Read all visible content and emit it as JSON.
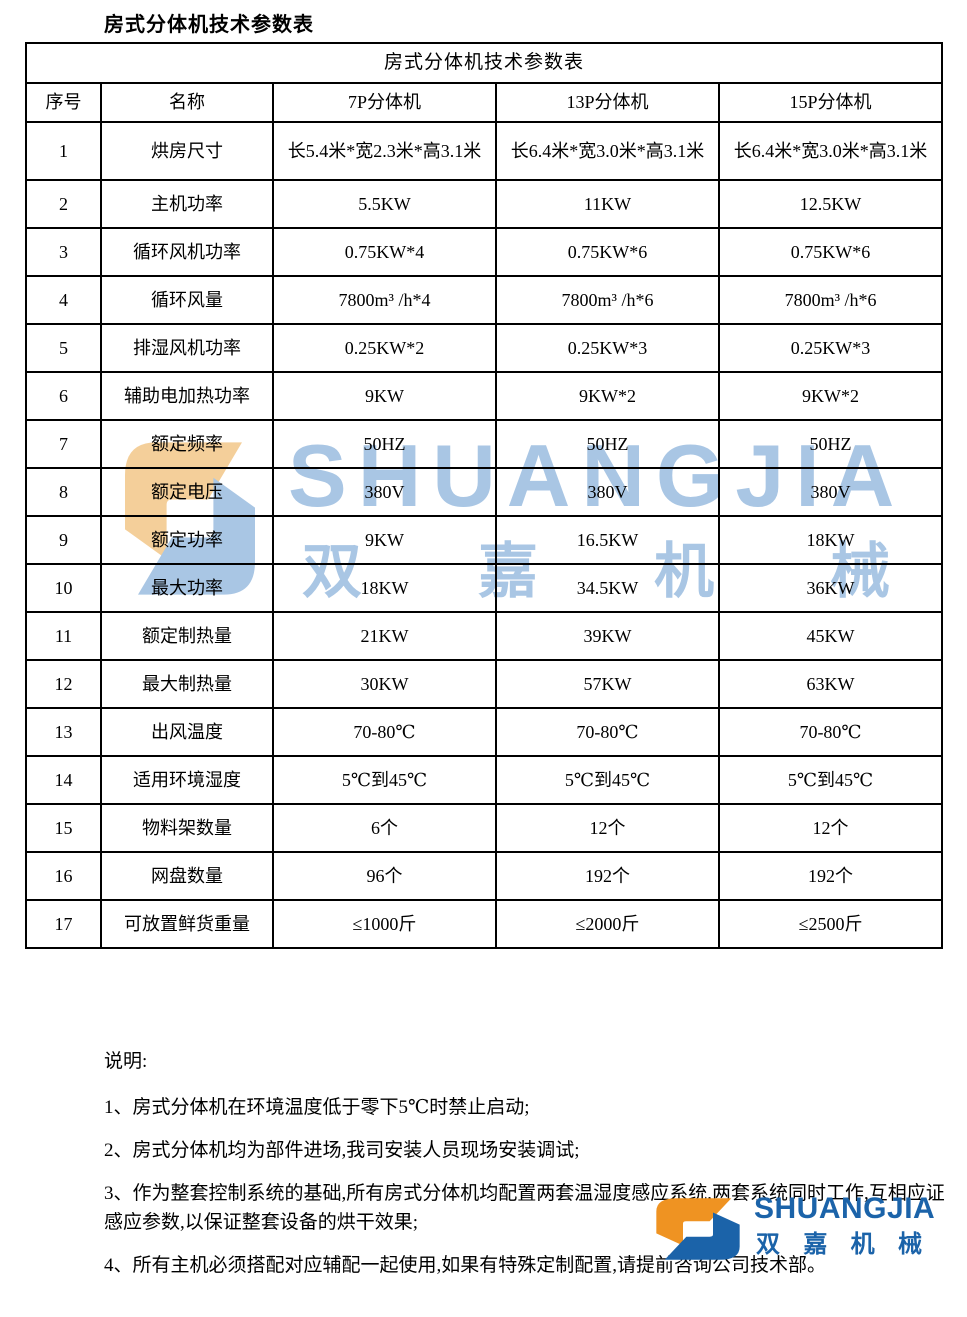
{
  "page_title": "房式分体机技术参数表",
  "table": {
    "caption": "房式分体机技术参数表",
    "columns": [
      "序号",
      "名称",
      "7P分体机",
      "13P分体机",
      "15P分体机"
    ],
    "rows": [
      [
        "1",
        "烘房尺寸",
        "长5.4米*宽2.3米*高3.1米",
        "长6.4米*宽3.0米*高3.1米",
        "长6.4米*宽3.0米*高3.1米"
      ],
      [
        "2",
        "主机功率",
        "5.5KW",
        "11KW",
        "12.5KW"
      ],
      [
        "3",
        "循环风机功率",
        "0.75KW*4",
        "0.75KW*6",
        "0.75KW*6"
      ],
      [
        "4",
        "循环风量",
        "7800m³ /h*4",
        "7800m³ /h*6",
        "7800m³ /h*6"
      ],
      [
        "5",
        "排湿风机功率",
        "0.25KW*2",
        "0.25KW*3",
        "0.25KW*3"
      ],
      [
        "6",
        "辅助电加热功率",
        "9KW",
        "9KW*2",
        "9KW*2"
      ],
      [
        "7",
        "额定频率",
        "50HZ",
        "50HZ",
        "50HZ"
      ],
      [
        "8",
        "额定电压",
        "380V",
        "380V",
        "380V"
      ],
      [
        "9",
        "额定功率",
        "9KW",
        "16.5KW",
        "18KW"
      ],
      [
        "10",
        "最大功率",
        "18KW",
        "34.5KW",
        "36KW"
      ],
      [
        "11",
        "额定制热量",
        "21KW",
        "39KW",
        "45KW"
      ],
      [
        "12",
        "最大制热量",
        "30KW",
        "57KW",
        "63KW"
      ],
      [
        "13",
        "出风温度",
        "70-80℃",
        "70-80℃",
        "70-80℃"
      ],
      [
        "14",
        "适用环境湿度",
        "5℃到45℃",
        "5℃到45℃",
        "5℃到45℃"
      ],
      [
        "15",
        "物料架数量",
        "6个",
        "12个",
        "12个"
      ],
      [
        "16",
        "网盘数量",
        "96个",
        "192个",
        "192个"
      ],
      [
        "17",
        "可放置鲜货重量",
        "≤1000斤",
        "≤2000斤",
        "≤2500斤"
      ]
    ]
  },
  "notes": {
    "heading": "说明:",
    "items": [
      "1、房式分体机在环境温度低于零下5℃时禁止启动;",
      "2、房式分体机均为部件进场,我司安装人员现场安装调试;",
      "3、作为整套控制系统的基础,所有房式分体机均配置两套温湿度感应系统,两套系统同时工作,互相应证感应参数,以保证整套设备的烘干效果;",
      "4、所有主机必须搭配对应辅配一起使用,如果有特殊定制配置,请提前咨询公司技术部。"
    ]
  },
  "watermark": {
    "brand": "SHUANGJIA",
    "brand_cn": "双嘉机械",
    "colors": {
      "light_blue": "#a9c6e4",
      "light_orange": "#f4cf9a"
    }
  },
  "footer_logo": {
    "brand": "SHUANGJIA",
    "brand_cn": "双嘉机械",
    "colors": {
      "blue": "#1b63a9",
      "orange": "#ef9322"
    }
  }
}
